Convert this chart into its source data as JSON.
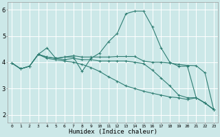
{
  "bg_color": "#cce8e8",
  "grid_color": "#ffffff",
  "line_color": "#2e7d72",
  "xlabel": "Humidex (Indice chaleur)",
  "ylim": [
    1.7,
    6.3
  ],
  "xlim": [
    -0.5,
    23.5
  ],
  "yticks": [
    2,
    3,
    4,
    5,
    6
  ],
  "xticks": [
    0,
    1,
    2,
    3,
    4,
    5,
    6,
    7,
    8,
    9,
    10,
    11,
    12,
    13,
    14,
    15,
    16,
    17,
    18,
    19,
    20,
    21,
    22,
    23
  ],
  "series": [
    {
      "x": [
        0,
        1,
        2,
        3,
        4,
        5,
        6,
        7,
        8,
        9,
        10,
        11,
        12,
        13,
        14,
        15,
        16,
        17,
        18,
        19,
        20,
        21,
        22,
        23
      ],
      "y": [
        3.97,
        3.75,
        3.85,
        4.3,
        4.55,
        4.15,
        4.2,
        4.2,
        3.65,
        4.15,
        4.35,
        4.78,
        5.1,
        5.85,
        5.95,
        5.95,
        5.35,
        4.55,
        4.0,
        3.85,
        3.85,
        2.65,
        2.45,
        2.2
      ]
    },
    {
      "x": [
        0,
        1,
        2,
        3,
        4,
        5,
        6,
        7,
        8,
        9,
        10,
        11,
        12,
        13,
        14,
        15,
        16,
        17,
        18,
        19,
        20,
        21,
        22,
        23
      ],
      "y": [
        3.97,
        3.75,
        3.85,
        4.3,
        4.2,
        4.15,
        4.2,
        4.25,
        4.2,
        4.2,
        4.2,
        4.2,
        4.22,
        4.22,
        4.22,
        4.05,
        4.0,
        4.0,
        3.97,
        3.92,
        3.88,
        3.87,
        3.6,
        2.2
      ]
    },
    {
      "x": [
        0,
        1,
        2,
        3,
        4,
        5,
        6,
        7,
        8,
        9,
        10,
        11,
        12,
        13,
        14,
        15,
        16,
        17,
        18,
        19,
        20,
        21,
        22,
        23
      ],
      "y": [
        3.97,
        3.75,
        3.85,
        4.3,
        4.2,
        4.15,
        4.1,
        4.15,
        4.1,
        4.1,
        4.05,
        4.05,
        4.05,
        4.05,
        4.0,
        3.95,
        3.7,
        3.4,
        3.1,
        2.75,
        2.65,
        2.65,
        2.45,
        2.2
      ]
    },
    {
      "x": [
        0,
        1,
        2,
        3,
        4,
        5,
        6,
        7,
        8,
        9,
        10,
        11,
        12,
        13,
        14,
        15,
        16,
        17,
        18,
        19,
        20,
        21,
        22,
        23
      ],
      "y": [
        3.97,
        3.75,
        3.85,
        4.3,
        4.15,
        4.1,
        4.05,
        4.0,
        3.92,
        3.8,
        3.65,
        3.45,
        3.28,
        3.1,
        3.0,
        2.9,
        2.82,
        2.75,
        2.68,
        2.65,
        2.58,
        2.65,
        2.45,
        2.2
      ]
    }
  ]
}
